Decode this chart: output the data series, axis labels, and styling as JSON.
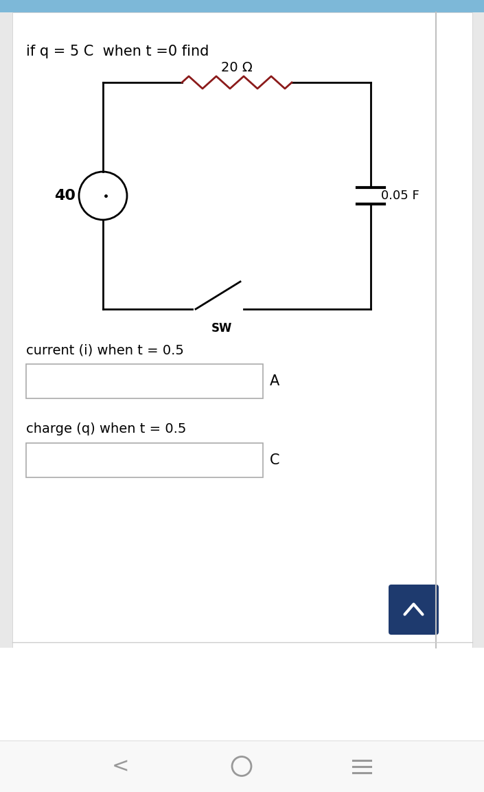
{
  "title_text": "if q = 5 C  when t =0 find",
  "resistor_label": "20 Ω",
  "voltage_label": "40",
  "capacitor_label": "0.05 F",
  "switch_label": "SW",
  "current_label": "current (i) when t = 0.5",
  "charge_label": "charge (q) when t = 0.5",
  "unit_A": "A",
  "unit_C": "C",
  "bg_color": "#ffffff",
  "outer_bg": "#e8e8e8",
  "header_color": "#7db8d8",
  "box_border_color": "#aaaaaa",
  "circuit_color": "#000000",
  "resistor_color": "#8B1a1a",
  "button_color": "#1e3a6e",
  "nav_color": "#ffffff",
  "sep_color": "#cccccc",
  "fig_width": 7.05,
  "fig_height": 11.53
}
